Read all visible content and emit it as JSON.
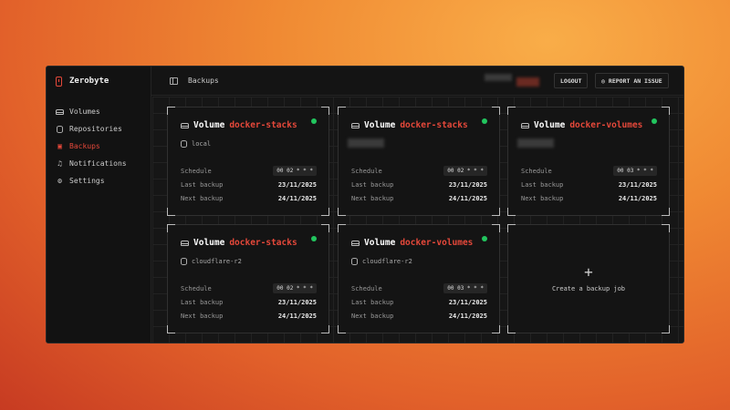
{
  "app": {
    "name": "Zerobyte"
  },
  "sidebar": {
    "items": [
      {
        "label": "Volumes",
        "icon": "hard-drive-icon",
        "active": false
      },
      {
        "label": "Repositories",
        "icon": "database-icon",
        "active": false
      },
      {
        "label": "Backups",
        "icon": "calendar-clock-icon",
        "active": true
      },
      {
        "label": "Notifications",
        "icon": "bell-icon",
        "active": false
      },
      {
        "label": "Settings",
        "icon": "gear-icon",
        "active": false
      }
    ]
  },
  "header": {
    "title": "Backups",
    "logout": "LOGOUT",
    "report": "REPORT AN ISSUE"
  },
  "colors": {
    "accent": "#e5483a",
    "status_ok": "#22c55e"
  },
  "labels": {
    "volume": "Volume",
    "schedule": "Schedule",
    "last": "Last backup",
    "next": "Next backup",
    "create": "Create a backup job"
  },
  "cards": [
    {
      "volume": "docker-stacks",
      "repo": "local",
      "schedule": "00 02 * * *",
      "last": "23/11/2025",
      "next": "24/11/2025"
    },
    {
      "volume": "docker-stacks",
      "repo": "",
      "schedule": "00 02 * * *",
      "last": "23/11/2025",
      "next": "24/11/2025"
    },
    {
      "volume": "docker-volumes",
      "repo": "",
      "schedule": "00 03 * * *",
      "last": "23/11/2025",
      "next": "24/11/2025"
    },
    {
      "volume": "docker-stacks",
      "repo": "cloudflare-r2",
      "schedule": "00 02 * * *",
      "last": "23/11/2025",
      "next": "24/11/2025"
    },
    {
      "volume": "docker-volumes",
      "repo": "cloudflare-r2",
      "schedule": "00 03 * * *",
      "last": "23/11/2025",
      "next": "24/11/2025"
    }
  ]
}
